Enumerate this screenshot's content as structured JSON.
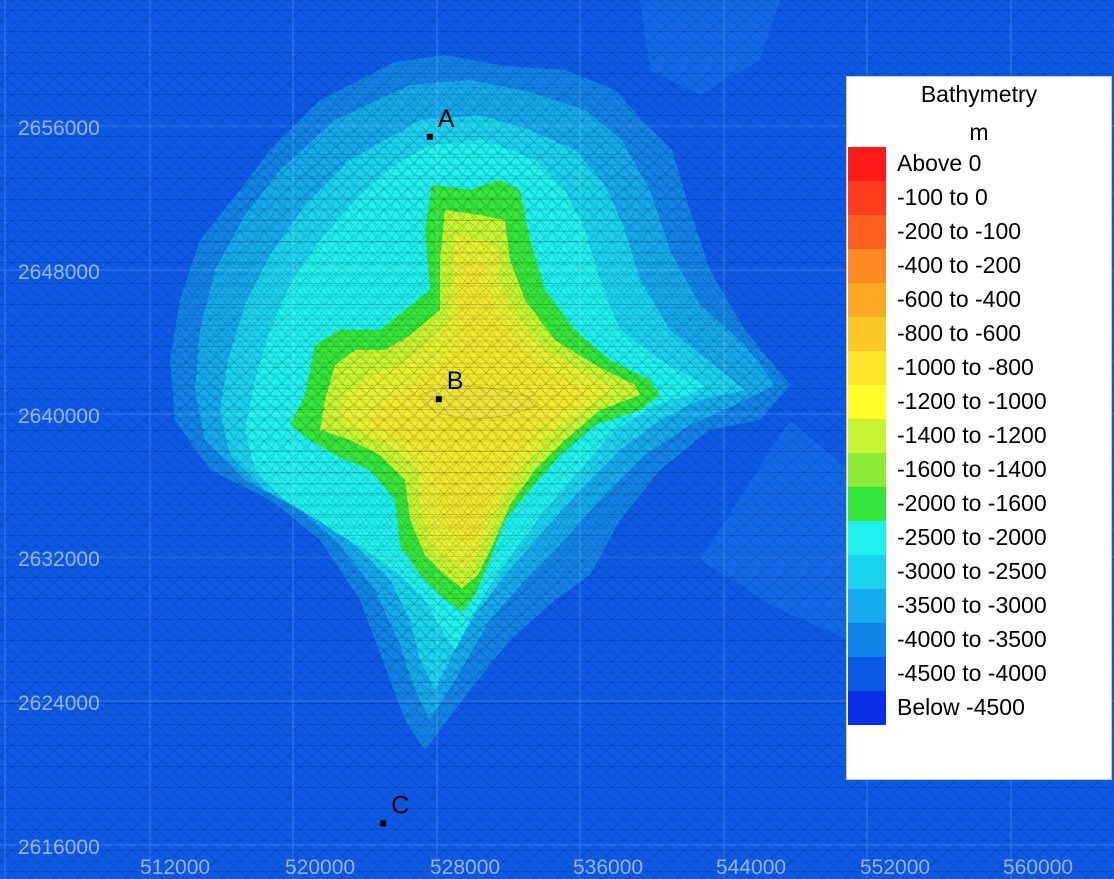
{
  "legend": {
    "title": "Bathymetry",
    "unit": "m",
    "items": [
      {
        "label": "Above 0",
        "color": "#ff1a1a"
      },
      {
        "label": "-100 to 0",
        "color": "#ff3d1c"
      },
      {
        "label": "-200 to -100",
        "color": "#ff6020"
      },
      {
        "label": "-400 to -200",
        "color": "#ff8a22"
      },
      {
        "label": "-600 to -400",
        "color": "#ffa824"
      },
      {
        "label": "-800 to -600",
        "color": "#ffc726"
      },
      {
        "label": "-1000 to -800",
        "color": "#ffe62a"
      },
      {
        "label": "-1200 to -1000",
        "color": "#ffff2a"
      },
      {
        "label": "-1400 to -1200",
        "color": "#c8f531"
      },
      {
        "label": "-1600 to -1400",
        "color": "#8ceb37"
      },
      {
        "label": "-2000 to -1600",
        "color": "#35e63a"
      },
      {
        "label": "-2500 to -2000",
        "color": "#20f0ee"
      },
      {
        "label": "-3000 to -2500",
        "color": "#1ad2ee"
      },
      {
        "label": "-3500 to -3000",
        "color": "#15aaed"
      },
      {
        "label": "-4000 to -3500",
        "color": "#1284e9"
      },
      {
        "label": "-4500 to -4000",
        "color": "#0e5ae6"
      },
      {
        "label": "Below -4500",
        "color": "#0a2de6"
      }
    ]
  },
  "axes": {
    "x_ticks": [
      "512000",
      "520000",
      "528000",
      "536000",
      "544000",
      "552000",
      "560000"
    ],
    "y_ticks": [
      "2656000",
      "2648000",
      "2640000",
      "2632000",
      "2624000",
      "2616000"
    ]
  },
  "points": [
    {
      "label": "A",
      "x": 527600,
      "y": 2655400
    },
    {
      "label": "B",
      "x": 528100,
      "y": 2640800
    },
    {
      "label": "C",
      "x": 525000,
      "y": 2617200
    }
  ]
}
